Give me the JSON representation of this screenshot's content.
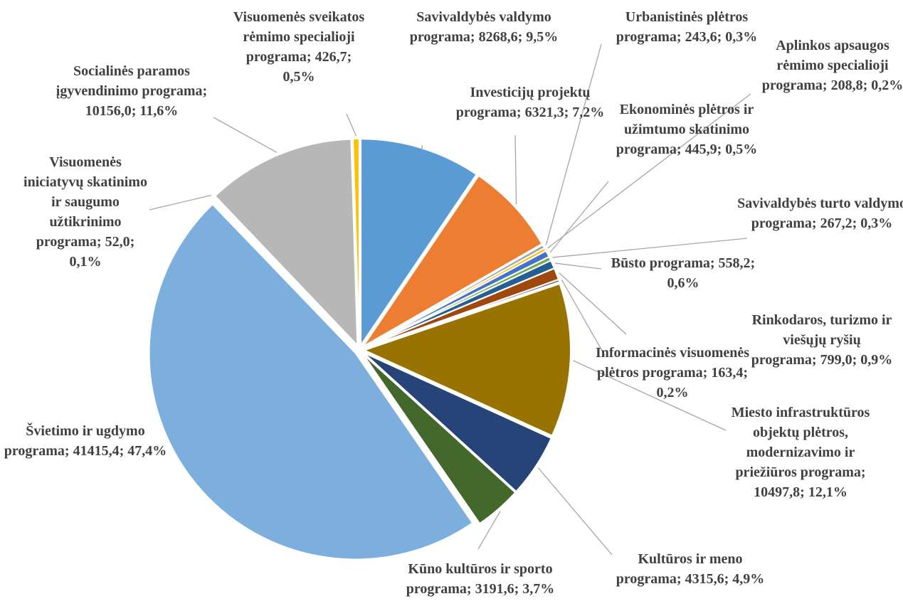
{
  "chart_data": {
    "type": "pie",
    "categories": [
      "Savivaldybės valdymo programa;",
      "Investicijų projektų programa;",
      "Urbanistinės plėtros programa;",
      "Aplinkos apsaugos rėmimo specialioji programa;",
      "Ekonominės plėtros ir užimtumo skatinimo programa;",
      "Savivaldybės turto valdymo programa;",
      "Būsto programa;",
      "Rinkodaros, turizmo ir viešųjų ryšių programa;",
      "Informacinės visuomenės plėtros programa;",
      "Miesto infrastruktūros objektų plėtros, modernizavimo ir priežiūros programa;",
      "Kultūros ir meno programa;",
      "Kūno kultūros ir sporto programa;",
      "Švietimo ir ugdymo programa;",
      "Visuomenės iniciatyvų skatinimo ir saugumo užtikrinimo programa;",
      "Socialinės paramos įgyvendinimo programa;",
      "Visuomenės sveikatos rėmimo specialioji programa;"
    ],
    "values": [
      8268.6,
      6321.3,
      243.6,
      208.8,
      445.9,
      267.2,
      558.2,
      799.0,
      163.4,
      10497.8,
      4315.6,
      3191.6,
      41415.4,
      52.0,
      10156.0,
      426.7
    ],
    "value_labels": [
      "8268,6; 9,5%",
      "6321,3; 7,2%",
      "243,6; 0,3%",
      "208,8; 0,2%",
      "445,9; 0,5%",
      "267,2; 0,3%",
      "558,2; 0,6%",
      "799,0; 0,9%",
      "163,4; 0,2%",
      "10497,8; 12,1%",
      "4315,6; 4,9%",
      "3191,6; 3,7%",
      "41415,4; 47,4%",
      "52,0; 0,1%",
      "10156,0; 11,6%",
      "426,7; 0,5%"
    ],
    "colors": [
      "#5b9bd5",
      "#ed7d31",
      "#a5a5a5",
      "#ffc000",
      "#4472c4",
      "#70ad47",
      "#255e91",
      "#9e480e",
      "#636363",
      "#997300",
      "#264478",
      "#43682b",
      "#7cafdd",
      "#f1975a",
      "#b7b7b7",
      "#ffc000"
    ]
  }
}
